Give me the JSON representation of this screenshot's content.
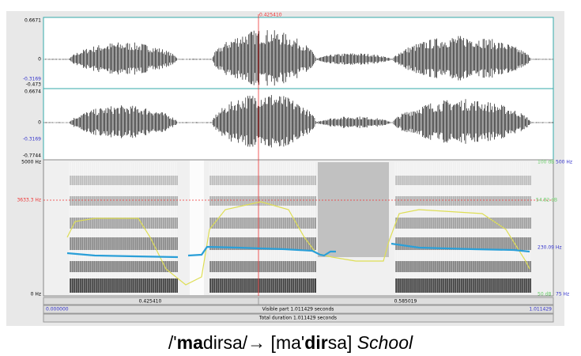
{
  "window": {
    "cursor_time": "0.425410",
    "channel1": {
      "max": "0.6671",
      "zero": "0",
      "marker": "-0.3169",
      "min": "-0.473"
    },
    "channel2": {
      "max": "0.6674",
      "zero": "0",
      "marker": "-0.3169",
      "min": "-0.7744"
    },
    "spectrogram": {
      "max": "5000 Hz",
      "cursor": "3633.3 Hz",
      "min": "0 Hz",
      "pitch_top": "500 Hz",
      "pitch_mid": "230.09 Hz",
      "pitch_bottom": "75 Hz",
      "intensity_top": "100 dB",
      "intensity_mid": "54.82 dB",
      "intensity_bottom": "50 dB"
    },
    "time_bar": {
      "left": "0.425410",
      "right": "0.585019"
    },
    "visible": {
      "start": "0.000000",
      "label": "Visible part 1.011429 seconds",
      "end": "1.011429"
    },
    "total": "Total duration 1.011429 seconds"
  },
  "caption": [
    "/'",
    "ma",
    "dirsa/",
    "→",
    " [ma'",
    "dir",
    "sa] ",
    "School"
  ]
}
